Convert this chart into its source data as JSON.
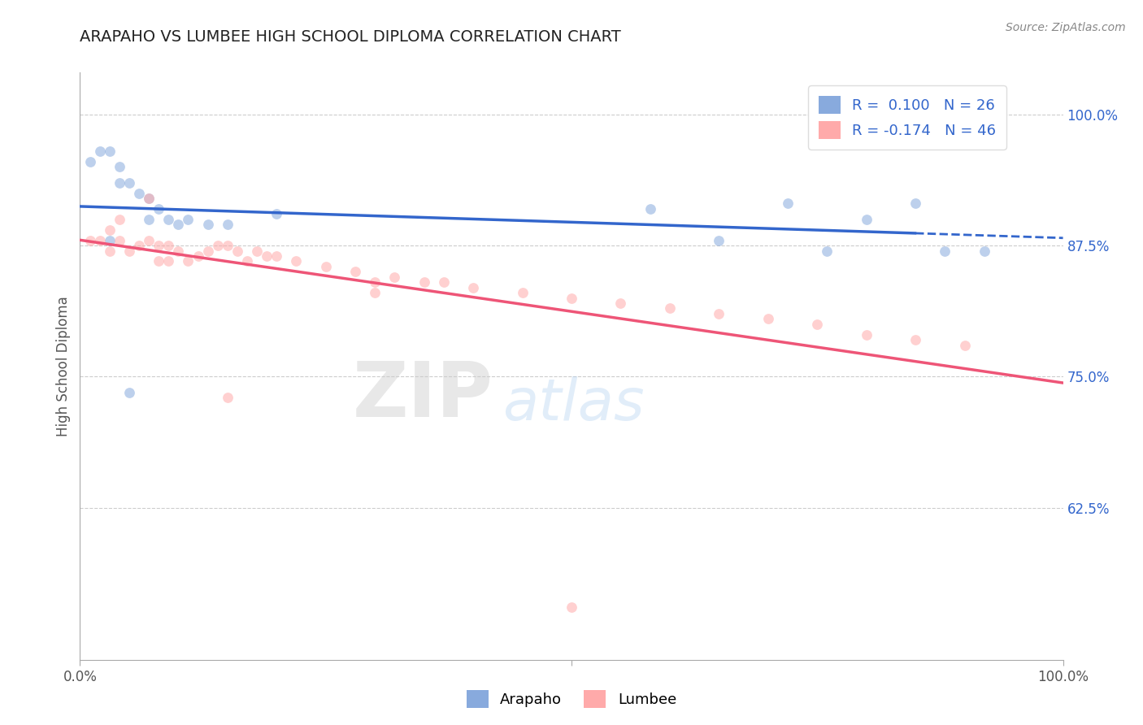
{
  "title": "ARAPAHO VS LUMBEE HIGH SCHOOL DIPLOMA CORRELATION CHART",
  "source": "Source: ZipAtlas.com",
  "ylabel": "High School Diploma",
  "r_arapaho": 0.1,
  "n_arapaho": 26,
  "r_lumbee": -0.174,
  "n_lumbee": 46,
  "color_arapaho": "#88AADD",
  "color_lumbee": "#FFAAAA",
  "color_arapaho_line": "#3366CC",
  "color_lumbee_line": "#EE5577",
  "background_color": "#FFFFFF",
  "xlim": [
    0.0,
    1.0
  ],
  "ylim": [
    0.48,
    1.04
  ],
  "right_yticks": [
    0.625,
    0.75,
    0.875,
    1.0
  ],
  "right_yticklabels": [
    "62.5%",
    "75.0%",
    "87.5%",
    "100.0%"
  ],
  "arapaho_x": [
    0.01,
    0.02,
    0.03,
    0.04,
    0.04,
    0.05,
    0.06,
    0.07,
    0.07,
    0.08,
    0.09,
    0.1,
    0.11,
    0.13,
    0.15,
    0.2,
    0.03,
    0.58,
    0.65,
    0.72,
    0.76,
    0.8,
    0.85,
    0.88,
    0.92,
    0.05
  ],
  "arapaho_y": [
    0.955,
    0.965,
    0.965,
    0.95,
    0.935,
    0.935,
    0.925,
    0.92,
    0.9,
    0.91,
    0.9,
    0.895,
    0.9,
    0.895,
    0.895,
    0.905,
    0.88,
    0.91,
    0.88,
    0.915,
    0.87,
    0.9,
    0.915,
    0.87,
    0.87,
    0.735
  ],
  "lumbee_x": [
    0.01,
    0.02,
    0.03,
    0.03,
    0.04,
    0.04,
    0.05,
    0.06,
    0.07,
    0.07,
    0.08,
    0.08,
    0.09,
    0.09,
    0.1,
    0.11,
    0.12,
    0.13,
    0.14,
    0.15,
    0.16,
    0.17,
    0.18,
    0.19,
    0.2,
    0.22,
    0.25,
    0.28,
    0.3,
    0.32,
    0.35,
    0.37,
    0.4,
    0.45,
    0.5,
    0.55,
    0.6,
    0.65,
    0.7,
    0.75,
    0.8,
    0.85,
    0.9,
    0.3,
    0.5,
    0.15
  ],
  "lumbee_y": [
    0.88,
    0.88,
    0.87,
    0.89,
    0.9,
    0.88,
    0.87,
    0.875,
    0.92,
    0.88,
    0.875,
    0.86,
    0.875,
    0.86,
    0.87,
    0.86,
    0.865,
    0.87,
    0.875,
    0.875,
    0.87,
    0.86,
    0.87,
    0.865,
    0.865,
    0.86,
    0.855,
    0.85,
    0.84,
    0.845,
    0.84,
    0.84,
    0.835,
    0.83,
    0.825,
    0.82,
    0.815,
    0.81,
    0.805,
    0.8,
    0.79,
    0.785,
    0.78,
    0.83,
    0.53,
    0.73
  ],
  "watermark_zip": "ZIP",
  "watermark_atlas": "atlas",
  "legend_loc": "upper right",
  "marker_size": 85,
  "alpha": 0.55
}
